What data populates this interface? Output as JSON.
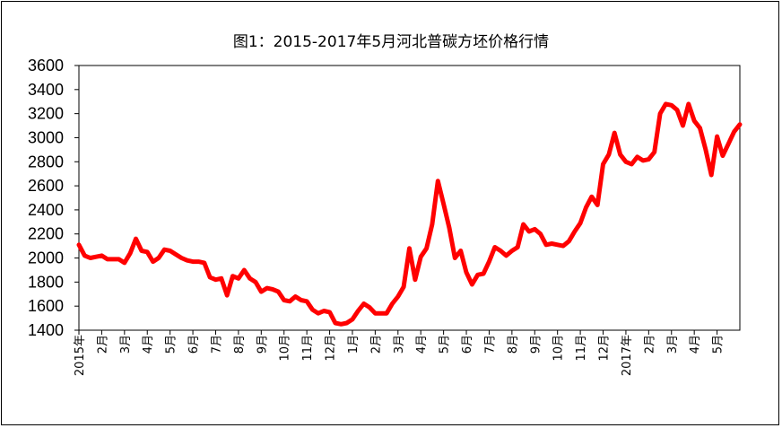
{
  "chart_data": {
    "type": "line",
    "title": "图1：2015-2017年5月河北普碳方坯价格行情",
    "xlabel": "",
    "ylabel": "",
    "ylim": [
      1400,
      3600
    ],
    "yticks": [
      1400,
      1600,
      1800,
      2000,
      2200,
      2400,
      2600,
      2800,
      3000,
      3200,
      3400,
      3600
    ],
    "grid": false,
    "legend": "none",
    "line_color": "#ff0000",
    "x_tick_labels": [
      "2015年",
      "2月",
      "3月",
      "4月",
      "5月",
      "6月",
      "7月",
      "8月",
      "9月",
      "10月",
      "11月",
      "12月",
      "1月",
      "2月",
      "3月",
      "4月",
      "5月",
      "6月",
      "7月",
      "8月",
      "9月",
      "10月",
      "11月",
      "12月",
      "2017年",
      "2月",
      "3月",
      "4月",
      "5月"
    ],
    "series": [
      {
        "values": [
          2110,
          2020,
          2000,
          2010,
          2020,
          1990,
          1990,
          1990,
          1960,
          2040,
          2160,
          2060,
          2050,
          1970,
          2000,
          2070,
          2060,
          2030,
          2000,
          1980,
          1970,
          1970,
          1960,
          1840,
          1820,
          1830,
          1690,
          1850,
          1830,
          1900,
          1830,
          1800,
          1720,
          1750,
          1740,
          1720,
          1650,
          1640,
          1680,
          1650,
          1640,
          1570,
          1540,
          1560,
          1550,
          1460,
          1450,
          1460,
          1490,
          1560,
          1620,
          1590,
          1540,
          1540,
          1540,
          1620,
          1680,
          1760,
          2080,
          1820,
          2010,
          2080,
          2280,
          2640,
          2450,
          2250,
          2000,
          2060,
          1880,
          1780,
          1860,
          1870,
          1970,
          2090,
          2060,
          2020,
          2060,
          2090,
          2280,
          2220,
          2240,
          2200,
          2110,
          2120,
          2110,
          2100,
          2140,
          2220,
          2290,
          2420,
          2510,
          2440,
          2780,
          2860,
          3040,
          2860,
          2800,
          2780,
          2840,
          2810,
          2820,
          2880,
          3200,
          3280,
          3270,
          3230,
          3100,
          3280,
          3140,
          3080,
          2900,
          2690,
          3010,
          2850,
          2950,
          3050,
          3110
        ]
      }
    ]
  }
}
